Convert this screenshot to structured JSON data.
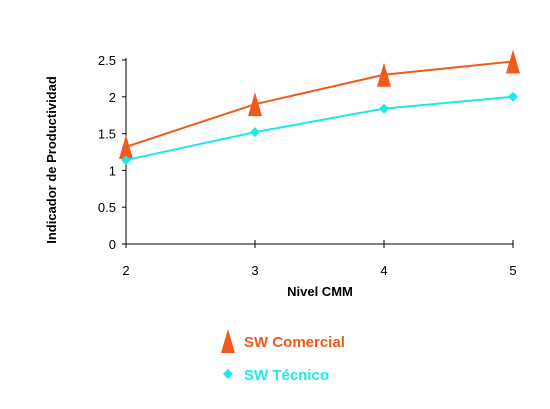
{
  "chart_data": {
    "type": "line",
    "x": [
      2,
      3,
      4,
      5
    ],
    "xlabel": "Nivel CMM",
    "ylabel": "Indicador de Productividad",
    "ylim": [
      0,
      2.5
    ],
    "yticks": [
      0,
      0.5,
      1,
      1.5,
      2,
      2.5
    ],
    "ytick_labels": [
      "0",
      "0.5",
      "1",
      "1.5",
      "2",
      "2.5"
    ],
    "xtick_labels": [
      "2",
      "3",
      "4",
      "5"
    ],
    "grid": false,
    "legend_position": "bottom",
    "series": [
      {
        "name": "SW Comercial",
        "values": [
          1.32,
          1.9,
          2.3,
          2.48
        ],
        "color": "#f05a1a",
        "marker": "triangle"
      },
      {
        "name": "SW Técnico",
        "values": [
          1.14,
          1.52,
          1.84,
          2.0
        ],
        "color": "#1ee8e8",
        "marker": "diamond"
      }
    ]
  }
}
